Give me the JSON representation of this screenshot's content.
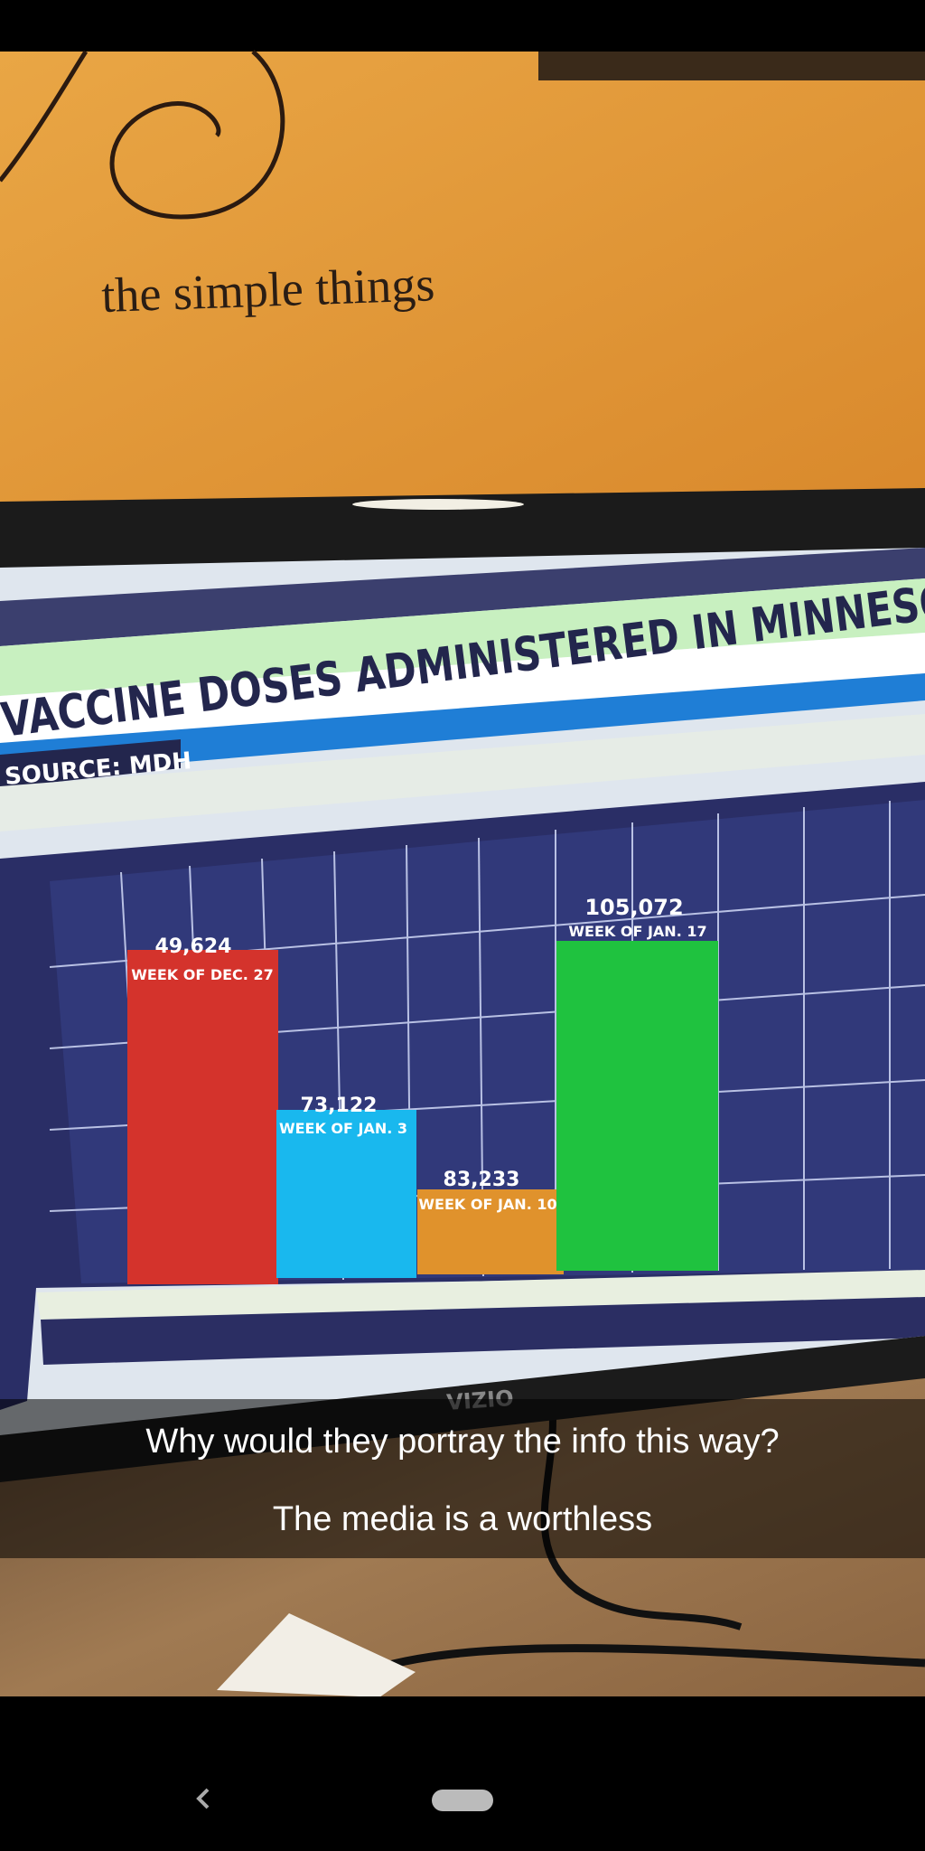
{
  "wall_text": "the simple things",
  "tv": {
    "title": "VACCINE DOSES ADMINISTERED IN MINNESO",
    "source": "SOURCE: MDH",
    "bars": [
      {
        "value": "49,624",
        "label": "WEEK OF DEC. 27"
      },
      {
        "value": "73,122",
        "label": "WEEK OF JAN. 3"
      },
      {
        "value": "83,233",
        "label": "WEEK OF JAN. 10"
      },
      {
        "value": "105,072",
        "label": "WEEK OF JAN. 17"
      }
    ],
    "brand": "VIZIO"
  },
  "captions": [
    "Why would they portray the info this way?",
    "The media is a worthless"
  ]
}
